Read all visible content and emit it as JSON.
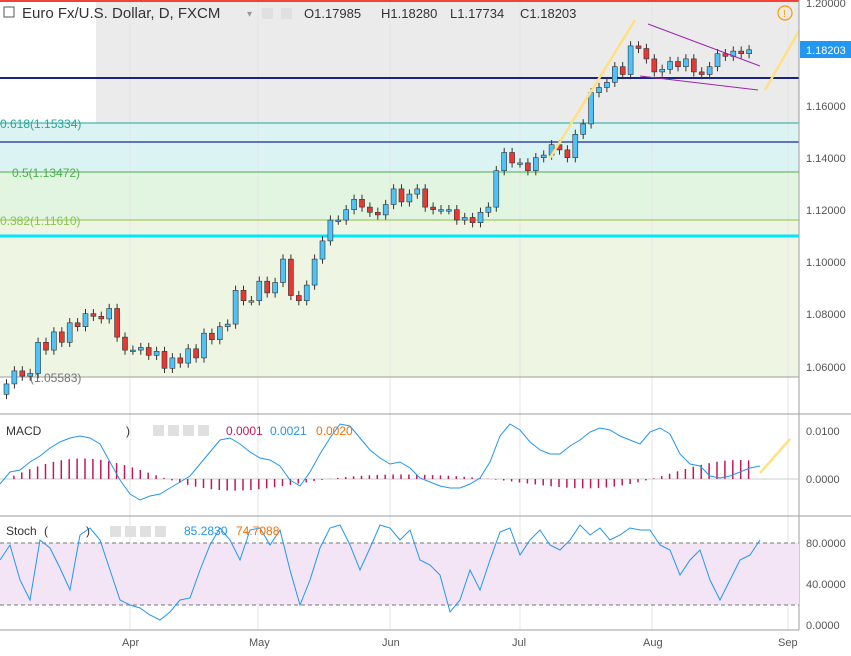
{
  "header": {
    "symbol_title": "Euro Fx/U.S. Dollar, D, FXCM",
    "ohlc": {
      "open": "O1.17985",
      "high": "H1.18280",
      "low": "L1.17734",
      "close": "C1.18203"
    },
    "alert_glyph": "!"
  },
  "price_axis": {
    "ticks": [
      "1.20000",
      "1.18000",
      "1.16000",
      "1.14000",
      "1.12000",
      "1.10000",
      "1.08000",
      "1.06000"
    ],
    "last_price": "1.18203",
    "last_color": "#2196f3"
  },
  "time_axis": {
    "labels": [
      "Apr",
      "May",
      "Jun",
      "Jul",
      "Aug",
      "Sep"
    ]
  },
  "fib_labels": [
    "0.618(1.15334)",
    "0.5(1.13472)",
    "0.382(1.11610)",
    "(1.05583)"
  ],
  "macd_panel": {
    "name": "MACD",
    "close_paren": ")",
    "values": [
      "0.0001",
      "0.0021",
      "0.0020"
    ],
    "colors": [
      "#c2185b",
      "#2196f3",
      "#ff6d00"
    ],
    "ticks": [
      "0.0100",
      "0.0000"
    ]
  },
  "stoch_panel": {
    "name": "Stoch",
    "open_paren": "(",
    "close_paren": ")",
    "values": [
      "85.2830",
      "74.7088"
    ],
    "colors": [
      "#2196f3",
      "#ff6d00"
    ],
    "ticks": [
      "80.0000",
      "40.0000",
      "0.0000"
    ]
  },
  "chart_data": {
    "type": "candlestick",
    "title": "Euro Fx/U.S. Dollar, D, FXCM",
    "x_months": [
      "Apr",
      "May",
      "Jun",
      "Jul",
      "Aug",
      "Sep"
    ],
    "ylim": [
      1.05,
      1.2
    ],
    "horizontal_levels": [
      {
        "label": "0.618(1.15334)",
        "value": 1.15334
      },
      {
        "label": "0.5(1.13472)",
        "value": 1.13472
      },
      {
        "label": "0.382(1.11610)",
        "value": 1.1161
      },
      {
        "label": "(1.05583)",
        "value": 1.05583
      },
      {
        "value": 1.1706,
        "color": "#1a237e"
      },
      {
        "value": 1.1465,
        "color": "#3949ab"
      },
      {
        "value": 1.1099,
        "color": "#00e5ff"
      }
    ],
    "closes": [
      1.0535,
      1.0585,
      1.0565,
      1.0575,
      1.0695,
      1.0665,
      1.0735,
      1.0695,
      1.077,
      1.0755,
      1.0805,
      1.0795,
      1.0785,
      1.0825,
      1.0715,
      1.0665,
      1.0665,
      1.0675,
      1.0645,
      1.066,
      1.0595,
      1.0635,
      1.0615,
      1.067,
      1.0635,
      1.073,
      1.0705,
      1.0755,
      1.0765,
      1.0895,
      1.0855,
      1.0855,
      1.093,
      1.0885,
      1.0925,
      1.1015,
      1.0875,
      1.0855,
      1.0915,
      1.1015,
      1.1085,
      1.1165,
      1.1165,
      1.1205,
      1.1245,
      1.1215,
      1.1195,
      1.1185,
      1.1225,
      1.1285,
      1.1235,
      1.1265,
      1.1285,
      1.1215,
      1.1205,
      1.1205,
      1.1205,
      1.1165,
      1.1175,
      1.1155,
      1.1195,
      1.1215,
      1.1355,
      1.1425,
      1.1385,
      1.1385,
      1.1355,
      1.1405,
      1.1415,
      1.1455,
      1.1435,
      1.1405,
      1.1495,
      1.1535,
      1.1655,
      1.1675,
      1.1695,
      1.1755,
      1.1725,
      1.1835,
      1.1825,
      1.1785,
      1.1735,
      1.1745,
      1.1775,
      1.1755,
      1.1785,
      1.1735,
      1.1725,
      1.1755,
      1.1805,
      1.1795,
      1.1815,
      1.1805,
      1.182
    ],
    "macd": {
      "histogram_last": 0.0001,
      "macd_last": 0.0021,
      "signal_last": 0.002,
      "range": [
        -0.006,
        0.011
      ]
    },
    "stochastic": {
      "k_last": 85.283,
      "d_last": 74.7088,
      "bands": [
        80,
        20
      ],
      "range": [
        0,
        100
      ]
    }
  }
}
